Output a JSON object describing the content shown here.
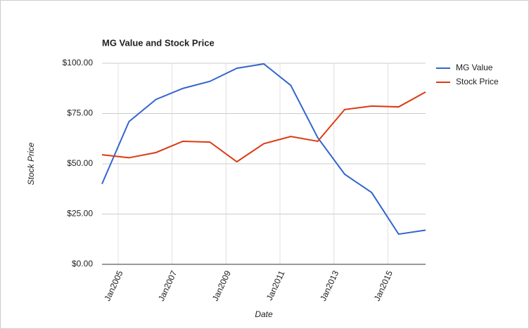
{
  "chart_data": {
    "type": "line",
    "title": "MG Value and Stock Price",
    "x_label": "Date",
    "y_label": "Stock Price",
    "x": [
      2004.4,
      2005.4,
      2006.4,
      2007.4,
      2008.4,
      2009.4,
      2010.4,
      2011.4,
      2012.4,
      2013.4,
      2014.4,
      2015.4,
      2016.4
    ],
    "series": [
      {
        "name": "MG Value",
        "color": "#3366cc",
        "values": [
          40,
          71,
          82,
          87.5,
          91,
          97.5,
          99.7,
          89,
          63,
          44.8,
          35.7,
          15,
          17
        ]
      },
      {
        "name": "Stock Price",
        "color": "#dc3912",
        "values": [
          54.5,
          53,
          55.6,
          61.2,
          60.8,
          51,
          60,
          63.6,
          61.2,
          77,
          78.7,
          78.3,
          85.7
        ]
      }
    ],
    "xlim": [
      2004.4,
      2016.4
    ],
    "xticks": [
      {
        "value": 2005,
        "label": "Jan2005"
      },
      {
        "value": 2007,
        "label": "Jan2007"
      },
      {
        "value": 2009,
        "label": "Jan2009"
      },
      {
        "value": 2011,
        "label": "Jan2011"
      },
      {
        "value": 2013,
        "label": "Jan2013"
      },
      {
        "value": 2015,
        "label": "Jan2015"
      }
    ],
    "ylim": [
      0,
      100
    ],
    "yticks": [
      {
        "value": 0,
        "label": "$0.00"
      },
      {
        "value": 25,
        "label": "$25.00"
      },
      {
        "value": 50,
        "label": "$50.00"
      },
      {
        "value": 75,
        "label": "$75.00"
      },
      {
        "value": 100,
        "label": "$100.00"
      }
    ],
    "grid": true,
    "legend": "right"
  }
}
